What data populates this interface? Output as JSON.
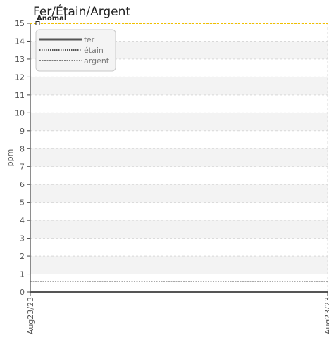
{
  "chart_data": {
    "type": "line",
    "title": "Fer/Étain/Argent",
    "xlabel": "",
    "ylabel": "ppm",
    "ylim": [
      0,
      15
    ],
    "yticks": [
      0,
      1,
      2,
      3,
      4,
      5,
      6,
      7,
      8,
      9,
      10,
      11,
      12,
      13,
      14,
      15
    ],
    "grid": true,
    "x": [
      "Aug23/23",
      "Aug23/23"
    ],
    "series": [
      {
        "name": "fer",
        "values": [
          0,
          0
        ],
        "color": "#555555",
        "style": "solid"
      },
      {
        "name": "étain",
        "values": [
          0,
          0
        ],
        "color": "#555555",
        "style": "dotted-thick"
      },
      {
        "name": "argent",
        "values": [
          0.6,
          0.6
        ],
        "color": "#555555",
        "style": "dashed-thin"
      }
    ],
    "threshold": {
      "label": "Anomal",
      "value": 15,
      "color": "#f0c000"
    },
    "legend_position": "top-left"
  }
}
